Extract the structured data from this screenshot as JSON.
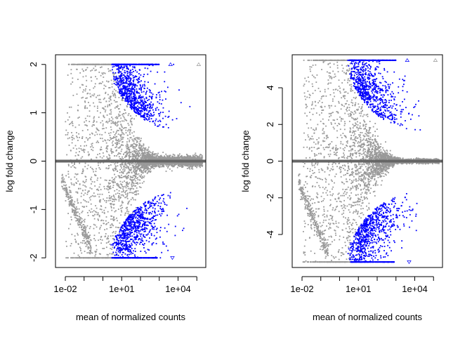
{
  "chart_data": [
    {
      "type": "scatter",
      "chart_kind": "MA plot",
      "xlabel": "mean of normalized counts",
      "ylabel": "log fold change",
      "x_scale": "log10",
      "xlim": [
        0.003,
        300000
      ],
      "ylim": [
        -2.2,
        2.2
      ],
      "x_ticks": [
        0.01,
        10,
        10000
      ],
      "x_tick_labels": [
        "1e-02",
        "1e+01",
        "1e+04"
      ],
      "x_minor_ticks": [
        0.01,
        0.1,
        1,
        10,
        100,
        1000,
        10000,
        100000
      ],
      "y_ticks": [
        -2,
        -1,
        0,
        1,
        2
      ],
      "y_tick_labels": [
        "-2",
        "-1",
        "0",
        "1",
        "2"
      ],
      "y_clip": [
        -2,
        2
      ],
      "hline_y": 0,
      "grid": false,
      "legend": "none",
      "series": [
        {
          "color": "#999999",
          "description": "not significant"
        },
        {
          "color": "#0000ff",
          "description": "significant"
        }
      ],
      "clipped_points_marker": "triangle"
    },
    {
      "type": "scatter",
      "chart_kind": "MA plot",
      "xlabel": "mean of normalized counts",
      "ylabel": "log fold change",
      "x_scale": "log10",
      "xlim": [
        0.003,
        300000
      ],
      "ylim": [
        -5.8,
        5.8
      ],
      "x_ticks": [
        0.01,
        10,
        10000
      ],
      "x_tick_labels": [
        "1e-02",
        "1e+01",
        "1e+04"
      ],
      "x_minor_ticks": [
        0.01,
        0.1,
        1,
        10,
        100,
        1000,
        10000,
        100000
      ],
      "y_ticks": [
        -4,
        -2,
        0,
        2,
        4
      ],
      "y_tick_labels": [
        "-4",
        "-2",
        "0",
        "2",
        "4"
      ],
      "y_clip": [
        -5.5,
        5.5
      ],
      "hline_y": 0,
      "grid": false,
      "legend": "none",
      "series": [
        {
          "color": "#999999",
          "description": "not significant"
        },
        {
          "color": "#0000ff",
          "description": "significant"
        }
      ],
      "clipped_points_marker": "triangle"
    }
  ],
  "colors": {
    "nonsignificant": "#999999",
    "significant": "#0000ff",
    "zero_line": "#666666",
    "axis": "#000000"
  }
}
